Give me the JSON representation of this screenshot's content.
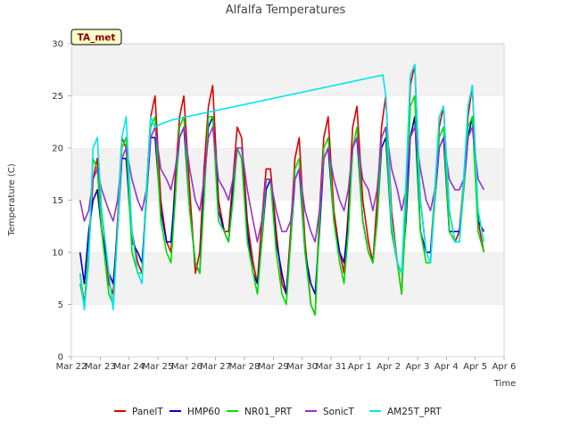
{
  "chart_data": {
    "type": "line",
    "title": "Alfalfa Temperatures",
    "station_badge": "TA_met",
    "xlabel": "Time",
    "ylabel": "Temperature (C)",
    "ylim": [
      0,
      30
    ],
    "yticks": [
      0,
      5,
      10,
      15,
      20,
      25,
      30
    ],
    "xlim": [
      "Mar 22",
      "Apr 6"
    ],
    "xtick_labels": [
      "Mar 22",
      "Mar 23",
      "Mar 24",
      "Mar 25",
      "Mar 26",
      "Mar 27",
      "Mar 28",
      "Mar 29",
      "Mar 30",
      "Mar 31",
      "Apr 1",
      "Apr 2",
      "Apr 3",
      "Apr 4",
      "Apr 5",
      "Apr 6"
    ],
    "x_units": "day index from Mar 22",
    "grid": "alternating horizontal bands",
    "legend_position": "bottom",
    "series": [
      {
        "name": "PanelT",
        "color": "#dd0000",
        "x": [
          0.3,
          0.45,
          0.6,
          0.75,
          0.9,
          1.05,
          1.3,
          1.45,
          1.6,
          1.75,
          1.9,
          2.1,
          2.3,
          2.45,
          2.6,
          2.75,
          2.9,
          3.1,
          3.3,
          3.45,
          3.6,
          3.75,
          3.9,
          4.1,
          4.3,
          4.45,
          4.6,
          4.75,
          4.9,
          5.1,
          5.3,
          5.45,
          5.6,
          5.75,
          5.9,
          6.1,
          6.3,
          6.45,
          6.6,
          6.75,
          6.9,
          7.1,
          7.3,
          7.45,
          7.6,
          7.75,
          7.9,
          8.1,
          8.3,
          8.45,
          8.6,
          8.75,
          8.9,
          9.1,
          9.3,
          9.45,
          9.6,
          9.75,
          9.9,
          10.1,
          10.3,
          10.45,
          10.6,
          10.75,
          10.9,
          11.1,
          11.3,
          11.45,
          11.6,
          11.75,
          11.9,
          12.1,
          12.3,
          12.45,
          12.6,
          12.75,
          12.9,
          13.1,
          13.3,
          13.45,
          13.6,
          13.75,
          13.9,
          14.1,
          14.3
        ],
        "y": [
          8,
          5,
          10,
          17,
          19,
          14,
          7,
          6,
          13,
          21,
          20,
          12,
          9,
          8,
          16,
          23,
          25,
          15,
          11,
          10,
          17,
          23,
          25,
          16,
          8,
          10,
          18,
          24,
          26,
          15,
          12,
          12,
          17,
          22,
          21,
          13,
          9,
          7,
          13,
          18,
          18,
          12,
          7,
          6,
          12,
          19,
          21,
          11,
          5,
          4,
          14,
          21,
          23,
          14,
          10,
          8,
          14,
          22,
          24,
          15,
          11,
          9,
          15,
          22,
          25,
          14,
          9,
          6,
          16,
          26,
          28,
          15,
          10,
          10,
          16,
          22,
          24,
          14,
          11,
          12,
          17,
          23,
          26,
          13,
          10
        ]
      },
      {
        "name": "HMP60",
        "color": "#0000cc",
        "x": [
          0.3,
          0.45,
          0.6,
          0.75,
          0.9,
          1.05,
          1.3,
          1.45,
          1.6,
          1.75,
          1.9,
          2.1,
          2.3,
          2.45,
          2.6,
          2.75,
          2.9,
          3.1,
          3.3,
          3.45,
          3.6,
          3.75,
          3.9,
          4.1,
          4.3,
          4.45,
          4.6,
          4.75,
          4.9,
          5.1,
          5.3,
          5.45,
          5.6,
          5.75,
          5.9,
          6.1,
          6.3,
          6.45,
          6.6,
          6.75,
          6.9,
          7.1,
          7.3,
          7.45,
          7.6,
          7.75,
          7.9,
          8.1,
          8.3,
          8.45,
          8.6,
          8.75,
          8.9,
          9.1,
          9.3,
          9.45,
          9.6,
          9.75,
          9.9,
          10.1,
          10.3,
          10.45,
          10.6,
          10.75,
          10.9,
          11.1,
          11.3,
          11.45,
          11.6,
          11.75,
          11.9,
          12.1,
          12.3,
          12.45,
          12.6,
          12.75,
          12.9,
          13.1,
          13.3,
          13.45,
          13.6,
          13.75,
          13.9,
          14.1,
          14.3
        ],
        "y": [
          10,
          7,
          12,
          15,
          16,
          12,
          8,
          7,
          12,
          19,
          19,
          11,
          10,
          9,
          15,
          21,
          21,
          14,
          11,
          11,
          16,
          21,
          22,
          14,
          9,
          8,
          16,
          22,
          23,
          14,
          12,
          11,
          16,
          20,
          19,
          12,
          8,
          7,
          11,
          16,
          17,
          11,
          8,
          6,
          11,
          17,
          18,
          10,
          7,
          6,
          12,
          19,
          20,
          13,
          10,
          9,
          13,
          20,
          21,
          13,
          10,
          9,
          13,
          20,
          21,
          12,
          9,
          8,
          13,
          21,
          23,
          12,
          10,
          10,
          15,
          20,
          21,
          12,
          12,
          12,
          16,
          21,
          23,
          13,
          12
        ]
      },
      {
        "name": "NR01_PRT",
        "color": "#00dd00",
        "x": [
          0.3,
          0.45,
          0.6,
          0.75,
          0.9,
          1.05,
          1.3,
          1.45,
          1.6,
          1.75,
          1.9,
          2.1,
          2.3,
          2.45,
          2.6,
          2.75,
          2.9,
          3.1,
          3.3,
          3.45,
          3.6,
          3.75,
          3.9,
          4.1,
          4.3,
          4.45,
          4.6,
          4.75,
          4.9,
          5.1,
          5.3,
          5.45,
          5.6,
          5.75,
          5.9,
          6.1,
          6.3,
          6.45,
          6.6,
          6.75,
          6.9,
          7.1,
          7.3,
          7.45,
          7.6,
          7.75,
          7.9,
          8.1,
          8.3,
          8.45,
          8.6,
          8.75,
          8.9,
          9.1,
          9.3,
          9.45,
          9.6,
          9.75,
          9.9,
          10.1,
          10.3,
          10.45,
          10.6,
          10.75,
          10.9,
          11.1,
          11.3,
          11.45,
          11.6,
          11.75,
          11.9,
          12.1,
          12.3,
          12.45,
          12.6,
          12.75,
          12.9,
          13.1,
          13.3,
          13.45,
          13.6,
          13.75,
          13.9,
          14.1,
          14.3
        ],
        "y": [
          7,
          5,
          10,
          19,
          18,
          12,
          6,
          5,
          12,
          20,
          21,
          10,
          8,
          8,
          15,
          22,
          23,
          13,
          10,
          9,
          15,
          22,
          23,
          14,
          9,
          8,
          15,
          23,
          23,
          13,
          12,
          11,
          15,
          20,
          19,
          11,
          8,
          6,
          11,
          17,
          17,
          10,
          6,
          5,
          11,
          18,
          19,
          10,
          5,
          4,
          13,
          20,
          21,
          13,
          9,
          7,
          12,
          20,
          22,
          13,
          10,
          9,
          13,
          21,
          22,
          12,
          9,
          6,
          14,
          24,
          25,
          12,
          9,
          9,
          15,
          21,
          22,
          12,
          11,
          11,
          16,
          22,
          23,
          12,
          10
        ]
      },
      {
        "name": "SonicT",
        "color": "#9932cc",
        "x": [
          0.3,
          0.45,
          0.6,
          0.75,
          0.9,
          1.05,
          1.3,
          1.45,
          1.6,
          1.75,
          1.9,
          2.1,
          2.3,
          2.45,
          2.6,
          2.75,
          2.9,
          3.1,
          3.3,
          3.45,
          3.6,
          3.75,
          3.9,
          4.1,
          4.3,
          4.45,
          4.6,
          4.75,
          4.9,
          5.1,
          5.3,
          5.45,
          5.6,
          5.75,
          5.9,
          6.1,
          6.3,
          6.45,
          6.6,
          6.75,
          6.9,
          7.1,
          7.3,
          7.45,
          7.6,
          7.75,
          7.9,
          8.1,
          8.3,
          8.45,
          8.6,
          8.75,
          8.9,
          9.1,
          9.3,
          9.45,
          9.6,
          9.75,
          9.9,
          10.1,
          10.3,
          10.45,
          10.6,
          10.75,
          10.9,
          11.1,
          11.3,
          11.45,
          11.6,
          11.75,
          11.9,
          12.1,
          12.3,
          12.45,
          12.6,
          12.75,
          12.9,
          13.1,
          13.3,
          13.45,
          13.6,
          13.75,
          13.9,
          14.1,
          14.3
        ],
        "y": [
          15,
          13,
          14,
          17,
          18,
          16,
          14,
          13,
          15,
          19,
          20,
          17,
          15,
          14,
          16,
          21,
          22,
          18,
          17,
          16,
          18,
          21,
          22,
          18,
          15,
          14,
          17,
          21,
          22,
          17,
          16,
          15,
          17,
          20,
          20,
          16,
          13,
          11,
          13,
          17,
          17,
          14,
          12,
          12,
          13,
          17,
          18,
          14,
          12,
          11,
          14,
          19,
          20,
          17,
          15,
          14,
          16,
          20,
          21,
          17,
          16,
          14,
          16,
          21,
          22,
          18,
          16,
          14,
          16,
          21,
          22,
          18,
          15,
          14,
          16,
          20,
          21,
          17,
          16,
          16,
          17,
          21,
          22,
          17,
          16
        ]
      },
      {
        "name": "AM25T_PRT",
        "color": "#00e5ee",
        "x": [
          0.3,
          0.45,
          0.6,
          0.75,
          0.9,
          1.05,
          1.3,
          1.45,
          1.6,
          1.75,
          1.9,
          2.1,
          2.3,
          2.45,
          2.6,
          2.75,
          2.9,
          3.1,
          3.3,
          3.5,
          10.8,
          10.9,
          11.1,
          11.3,
          11.45,
          11.6,
          11.75,
          11.9,
          12.1,
          12.3,
          12.45,
          12.6,
          12.75,
          12.9,
          13.1,
          13.3,
          13.45,
          13.6,
          13.75,
          13.9,
          14.1,
          14.3
        ],
        "y": [
          8,
          4.5,
          9,
          20,
          21,
          14,
          8,
          4.5,
          12,
          21,
          23,
          12,
          8,
          7,
          16,
          23,
          22,
          22.3,
          22.5,
          22.7,
          27,
          25,
          13,
          9,
          8,
          17,
          27,
          28,
          15,
          10,
          9,
          16,
          23,
          24,
          14,
          11,
          11,
          17,
          24,
          26,
          14,
          11
        ]
      }
    ]
  }
}
